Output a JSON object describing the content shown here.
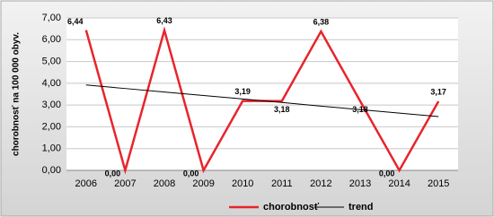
{
  "chart_data": {
    "type": "line",
    "y_label": "chorobnosť na 100 000 obyv.",
    "categories": [
      "2006",
      "2007",
      "2008",
      "2009",
      "2010",
      "2011",
      "2012",
      "2013",
      "2014",
      "2015"
    ],
    "series": [
      {
        "name": "chorobnosť",
        "color": "#e8242c",
        "values": [
          6.44,
          0,
          6.43,
          0,
          3.19,
          3.18,
          6.38,
          3.18,
          0,
          3.17
        ],
        "value_labels": [
          "6,44",
          "0,00",
          "6,43",
          "0,00",
          "3,19",
          "3,18",
          "6,38",
          "3,18",
          "0,00",
          "3,17"
        ]
      },
      {
        "name": "trend",
        "color": "#000000",
        "values": [
          3.92,
          3.76,
          3.6,
          3.44,
          3.28,
          3.12,
          2.95,
          2.79,
          2.63,
          2.47
        ]
      }
    ],
    "ylim": [
      0,
      7
    ],
    "yticks": [
      {
        "value": 0,
        "label": "0,00"
      },
      {
        "value": 1,
        "label": "1,00"
      },
      {
        "value": 2,
        "label": "2,00"
      },
      {
        "value": 3,
        "label": "3,00"
      },
      {
        "value": 4,
        "label": "4,00"
      },
      {
        "value": 5,
        "label": "5,00"
      },
      {
        "value": 6,
        "label": "6,00"
      },
      {
        "value": 7,
        "label": "7,00"
      }
    ],
    "grid": true
  }
}
